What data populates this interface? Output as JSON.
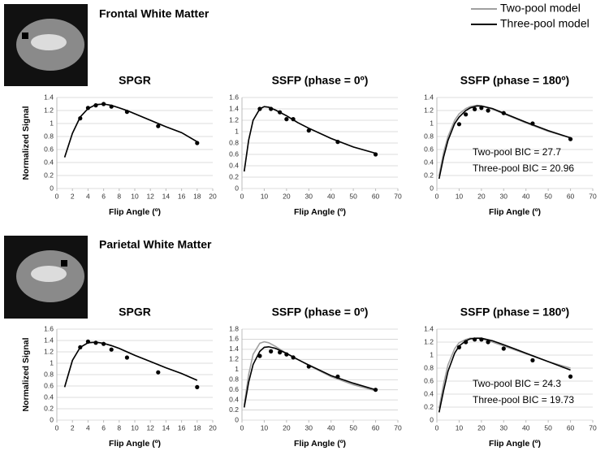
{
  "sections": [
    {
      "title": "Frontal White Matter"
    },
    {
      "title": "Parietal White Matter"
    }
  ],
  "legend": [
    {
      "name": "Two-pool model",
      "color": "#a0a0a0"
    },
    {
      "name": "Three-pool model",
      "color": "#000000"
    }
  ],
  "chart_data": [
    {
      "type": "line",
      "title": "SPGR",
      "xlabel": "Flip Angle (º)",
      "ylabel": "Normalized Signal",
      "xlim": [
        0,
        20
      ],
      "xticks": [
        0,
        2,
        4,
        6,
        8,
        10,
        12,
        14,
        16,
        18,
        20
      ],
      "ylim": [
        0,
        1.4
      ],
      "yticks": [
        0,
        0.2,
        0.4,
        0.6,
        0.8,
        1,
        1.2,
        1.4
      ],
      "grid": true,
      "series": [
        {
          "style": "line",
          "color": "#a0a0a0",
          "x": [
            1,
            2,
            3,
            4,
            5,
            6,
            7,
            8,
            9,
            10,
            12,
            14,
            16,
            18
          ],
          "values": [
            0.48,
            0.85,
            1.1,
            1.23,
            1.29,
            1.3,
            1.28,
            1.24,
            1.2,
            1.15,
            1.05,
            0.95,
            0.86,
            0.72
          ]
        },
        {
          "style": "line",
          "color": "#000000",
          "x": [
            1,
            2,
            3,
            4,
            5,
            6,
            7,
            8,
            9,
            10,
            12,
            14,
            16,
            18
          ],
          "values": [
            0.48,
            0.85,
            1.1,
            1.23,
            1.29,
            1.3,
            1.28,
            1.24,
            1.2,
            1.15,
            1.05,
            0.95,
            0.86,
            0.72
          ]
        },
        {
          "style": "points",
          "color": "#000000",
          "x": [
            3,
            4,
            5,
            6,
            7,
            9,
            13,
            18
          ],
          "values": [
            1.08,
            1.24,
            1.28,
            1.3,
            1.26,
            1.18,
            0.96,
            0.7
          ]
        }
      ]
    },
    {
      "type": "line",
      "title": "SSFP (phase = 0º)",
      "xlabel": "Flip Angle (º)",
      "xlim": [
        0,
        70
      ],
      "xticks": [
        0,
        10,
        20,
        30,
        40,
        50,
        60,
        70
      ],
      "ylim": [
        0,
        1.6
      ],
      "yticks": [
        0,
        0.2,
        0.4,
        0.6,
        0.8,
        1,
        1.2,
        1.4,
        1.6
      ],
      "grid": true,
      "series": [
        {
          "style": "line",
          "color": "#a0a0a0",
          "x": [
            1,
            3,
            5,
            8,
            10,
            12,
            15,
            20,
            25,
            30,
            40,
            50,
            60
          ],
          "values": [
            0.3,
            0.85,
            1.2,
            1.4,
            1.44,
            1.43,
            1.38,
            1.28,
            1.16,
            1.06,
            0.88,
            0.73,
            0.62
          ]
        },
        {
          "style": "line",
          "color": "#000000",
          "x": [
            1,
            3,
            5,
            8,
            10,
            12,
            15,
            20,
            25,
            30,
            40,
            50,
            60
          ],
          "values": [
            0.3,
            0.85,
            1.2,
            1.4,
            1.44,
            1.43,
            1.38,
            1.28,
            1.16,
            1.06,
            0.88,
            0.73,
            0.62
          ]
        },
        {
          "style": "points",
          "color": "#000000",
          "x": [
            8,
            13,
            17,
            20,
            23,
            30,
            43,
            60
          ],
          "values": [
            1.4,
            1.4,
            1.34,
            1.22,
            1.22,
            1.02,
            0.82,
            0.6
          ]
        }
      ]
    },
    {
      "type": "line",
      "title": "SSFP (phase = 180º)",
      "xlabel": "Flip Angle (º)",
      "xlim": [
        0,
        70
      ],
      "xticks": [
        0,
        10,
        20,
        30,
        40,
        50,
        60,
        70
      ],
      "ylim": [
        0,
        1.4
      ],
      "yticks": [
        0,
        0.2,
        0.4,
        0.6,
        0.8,
        1,
        1.2,
        1.4
      ],
      "grid": true,
      "series": [
        {
          "style": "line",
          "color": "#a0a0a0",
          "x": [
            1,
            3,
            5,
            8,
            10,
            13,
            15,
            18,
            20,
            25,
            30,
            40,
            50,
            60
          ],
          "values": [
            0.2,
            0.55,
            0.8,
            1.05,
            1.15,
            1.23,
            1.26,
            1.28,
            1.27,
            1.22,
            1.15,
            1.01,
            0.88,
            0.78
          ]
        },
        {
          "style": "line",
          "color": "#000000",
          "x": [
            1,
            3,
            5,
            8,
            10,
            13,
            15,
            18,
            20,
            25,
            30,
            40,
            50,
            60
          ],
          "values": [
            0.15,
            0.48,
            0.74,
            1.0,
            1.1,
            1.2,
            1.24,
            1.27,
            1.27,
            1.23,
            1.16,
            1.02,
            0.89,
            0.78
          ]
        },
        {
          "style": "points",
          "color": "#000000",
          "x": [
            10,
            13,
            17,
            20,
            23,
            30,
            43,
            60
          ],
          "values": [
            0.99,
            1.14,
            1.22,
            1.24,
            1.2,
            1.16,
            1.0,
            0.76
          ]
        }
      ],
      "annotations": [
        {
          "text": "Two-pool BIC = 27.7",
          "color": "#a0a0a0"
        },
        {
          "text": "Three-pool BIC = 20.96",
          "color": "#000000"
        }
      ]
    },
    {
      "type": "line",
      "title": "SPGR",
      "xlabel": "Flip Angle (º)",
      "ylabel": "Normalized Signal",
      "xlim": [
        0,
        20
      ],
      "xticks": [
        0,
        2,
        4,
        6,
        8,
        10,
        12,
        14,
        16,
        18,
        20
      ],
      "ylim": [
        0,
        1.6
      ],
      "yticks": [
        0,
        0.2,
        0.4,
        0.6,
        0.8,
        1,
        1.2,
        1.4,
        1.6
      ],
      "grid": true,
      "series": [
        {
          "style": "line",
          "color": "#a0a0a0",
          "x": [
            1,
            2,
            3,
            4,
            5,
            6,
            7,
            8,
            9,
            10,
            12,
            14,
            16,
            18
          ],
          "values": [
            0.58,
            1.05,
            1.28,
            1.36,
            1.37,
            1.35,
            1.31,
            1.26,
            1.2,
            1.14,
            1.03,
            0.92,
            0.82,
            0.7
          ]
        },
        {
          "style": "line",
          "color": "#000000",
          "x": [
            1,
            2,
            3,
            4,
            5,
            6,
            7,
            8,
            9,
            10,
            12,
            14,
            16,
            18
          ],
          "values": [
            0.58,
            1.05,
            1.28,
            1.36,
            1.37,
            1.35,
            1.31,
            1.26,
            1.2,
            1.14,
            1.03,
            0.92,
            0.82,
            0.7
          ]
        },
        {
          "style": "points",
          "color": "#000000",
          "x": [
            3,
            4,
            5,
            6,
            7,
            9,
            13,
            18
          ],
          "values": [
            1.28,
            1.38,
            1.36,
            1.34,
            1.24,
            1.1,
            0.84,
            0.58
          ]
        }
      ]
    },
    {
      "type": "line",
      "title": "SSFP (phase = 0º)",
      "xlabel": "Flip Angle (º)",
      "xlim": [
        0,
        70
      ],
      "xticks": [
        0,
        10,
        20,
        30,
        40,
        50,
        60,
        70
      ],
      "ylim": [
        0,
        1.8
      ],
      "yticks": [
        0,
        0.2,
        0.4,
        0.6,
        0.8,
        1,
        1.2,
        1.4,
        1.6,
        1.8
      ],
      "grid": true,
      "series": [
        {
          "style": "line",
          "color": "#a0a0a0",
          "x": [
            1,
            3,
            5,
            8,
            10,
            12,
            15,
            20,
            25,
            30,
            40,
            50,
            60
          ],
          "values": [
            0.3,
            0.9,
            1.3,
            1.52,
            1.55,
            1.53,
            1.46,
            1.32,
            1.2,
            1.08,
            0.86,
            0.7,
            0.58
          ]
        },
        {
          "style": "line",
          "color": "#000000",
          "x": [
            1,
            3,
            5,
            8,
            10,
            12,
            15,
            20,
            25,
            30,
            40,
            50,
            60
          ],
          "values": [
            0.25,
            0.75,
            1.1,
            1.36,
            1.44,
            1.45,
            1.42,
            1.32,
            1.2,
            1.09,
            0.88,
            0.73,
            0.6
          ]
        },
        {
          "style": "points",
          "color": "#000000",
          "x": [
            8,
            13,
            17,
            20,
            23,
            30,
            43,
            60
          ],
          "values": [
            1.27,
            1.36,
            1.34,
            1.3,
            1.24,
            1.06,
            0.86,
            0.6
          ]
        }
      ]
    },
    {
      "type": "line",
      "title": "SSFP (phase = 180º)",
      "xlabel": "Flip Angle (º)",
      "xlim": [
        0,
        70
      ],
      "xticks": [
        0,
        10,
        20,
        30,
        40,
        50,
        60,
        70
      ],
      "ylim": [
        0,
        1.4
      ],
      "yticks": [
        0,
        0.2,
        0.4,
        0.6,
        0.8,
        1,
        1.2,
        1.4
      ],
      "grid": true,
      "series": [
        {
          "style": "line",
          "color": "#a0a0a0",
          "x": [
            1,
            3,
            5,
            8,
            10,
            13,
            15,
            18,
            20,
            25,
            30,
            40,
            50,
            60
          ],
          "values": [
            0.18,
            0.55,
            0.85,
            1.1,
            1.19,
            1.24,
            1.26,
            1.26,
            1.25,
            1.2,
            1.14,
            1.02,
            0.9,
            0.8
          ]
        },
        {
          "style": "line",
          "color": "#000000",
          "x": [
            1,
            3,
            5,
            8,
            10,
            13,
            15,
            18,
            20,
            25,
            30,
            40,
            50,
            60
          ],
          "values": [
            0.12,
            0.45,
            0.75,
            1.03,
            1.14,
            1.22,
            1.25,
            1.26,
            1.26,
            1.22,
            1.16,
            1.03,
            0.9,
            0.77
          ]
        },
        {
          "style": "points",
          "color": "#000000",
          "x": [
            10,
            13,
            17,
            20,
            23,
            30,
            43,
            60
          ],
          "values": [
            1.12,
            1.2,
            1.24,
            1.24,
            1.2,
            1.1,
            0.92,
            0.67
          ]
        }
      ],
      "annotations": [
        {
          "text": "Two-pool BIC = 24.3",
          "color": "#a0a0a0"
        },
        {
          "text": "Three-pool BIC = 19.73",
          "color": "#000000"
        }
      ]
    }
  ]
}
